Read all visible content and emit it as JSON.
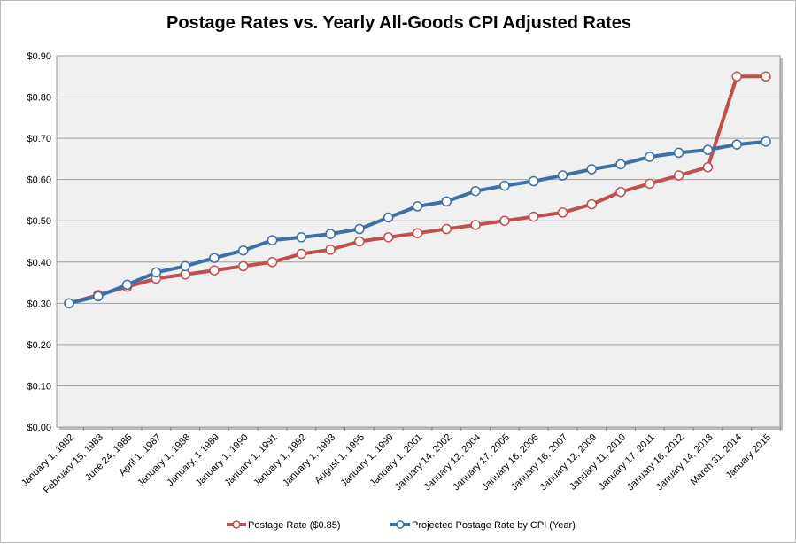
{
  "chart_data": {
    "type": "line",
    "title": "Postage Rates vs. Yearly All-Goods CPI Adjusted Rates",
    "xlabel": "",
    "ylabel": "",
    "ylim": [
      0,
      0.9
    ],
    "y_ticks": [
      "$0.00",
      "$0.10",
      "$0.20",
      "$0.30",
      "$0.40",
      "$0.50",
      "$0.60",
      "$0.70",
      "$0.80",
      "$0.90"
    ],
    "grid": true,
    "legend_position": "bottom",
    "categories": [
      "January 1, 1982",
      "February 15, 1983",
      "June 24, 1985",
      "April 1, 1987",
      "January 1, 1988",
      "January, 1 1989",
      "January 1, 1990",
      "January 1, 1991",
      "January 1, 1992",
      "January 1, 1993",
      "August 1, 1995",
      "January 1, 1999",
      "January 1, 2001",
      "January 14, 2002",
      "January 12, 2004",
      "January 17, 2005",
      "January 16, 2006",
      "January 16, 2007",
      "January 12, 2009",
      "January 11, 2010",
      "January 17, 2011",
      "January 16, 2012",
      "January 14, 2013",
      "March 31, 2014",
      "January 2015"
    ],
    "series": [
      {
        "name": "Postage Rate ($0.85)",
        "color": "#c0504d",
        "values": [
          0.3,
          0.32,
          0.34,
          0.36,
          0.37,
          0.38,
          0.39,
          0.4,
          0.42,
          0.43,
          0.45,
          0.46,
          0.47,
          0.48,
          0.49,
          0.5,
          0.51,
          0.52,
          0.54,
          0.57,
          0.59,
          0.61,
          0.63,
          0.85,
          0.85
        ]
      },
      {
        "name": "Projected Postage Rate by CPI (Year)",
        "color": "#3e6ea5",
        "values": [
          0.3,
          0.317,
          0.345,
          0.375,
          0.39,
          0.41,
          0.428,
          0.453,
          0.46,
          0.468,
          0.48,
          0.508,
          0.535,
          0.547,
          0.572,
          0.585,
          0.596,
          0.61,
          0.625,
          0.637,
          0.655,
          0.665,
          0.672,
          0.685,
          0.692
        ]
      }
    ]
  }
}
